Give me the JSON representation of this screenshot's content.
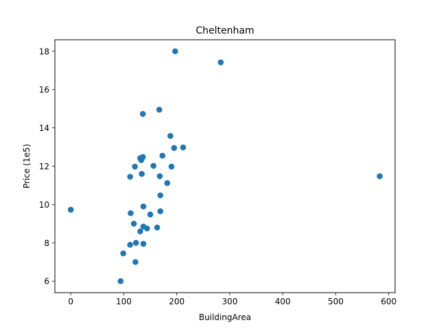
{
  "chart_data": {
    "type": "scatter",
    "title": "Cheltenham",
    "xlabel": "BuildingArea",
    "ylabel": "Price (1e5)",
    "xlim": [
      -30,
      612
    ],
    "ylim": [
      5.4,
      18.6
    ],
    "xticks": [
      0,
      100,
      200,
      300,
      400,
      500,
      600
    ],
    "yticks": [
      6,
      8,
      10,
      12,
      14,
      16,
      18
    ],
    "grid": false,
    "marker_color": "#1f77b4",
    "series": [
      {
        "x": [
          0,
          94,
          99,
          112,
          113,
          112,
          119,
          121,
          122,
          123,
          131,
          131,
          133,
          134,
          134,
          136,
          136,
          137,
          137,
          137,
          144,
          150,
          156,
          163,
          167,
          168,
          169,
          169,
          173,
          182,
          188,
          190,
          195,
          212,
          283,
          197,
          583
        ],
        "y": [
          9.73,
          6.0,
          7.45,
          7.9,
          9.55,
          11.45,
          9.0,
          11.98,
          7.0,
          8.0,
          8.6,
          12.42,
          12.32,
          11.6,
          12.4,
          14.73,
          12.48,
          8.85,
          7.95,
          9.9,
          8.75,
          9.48,
          12.02,
          8.8,
          14.95,
          11.48,
          9.65,
          10.48,
          12.55,
          11.12,
          13.58,
          11.98,
          12.95,
          12.98,
          17.42,
          18.0,
          11.48
        ]
      }
    ]
  }
}
